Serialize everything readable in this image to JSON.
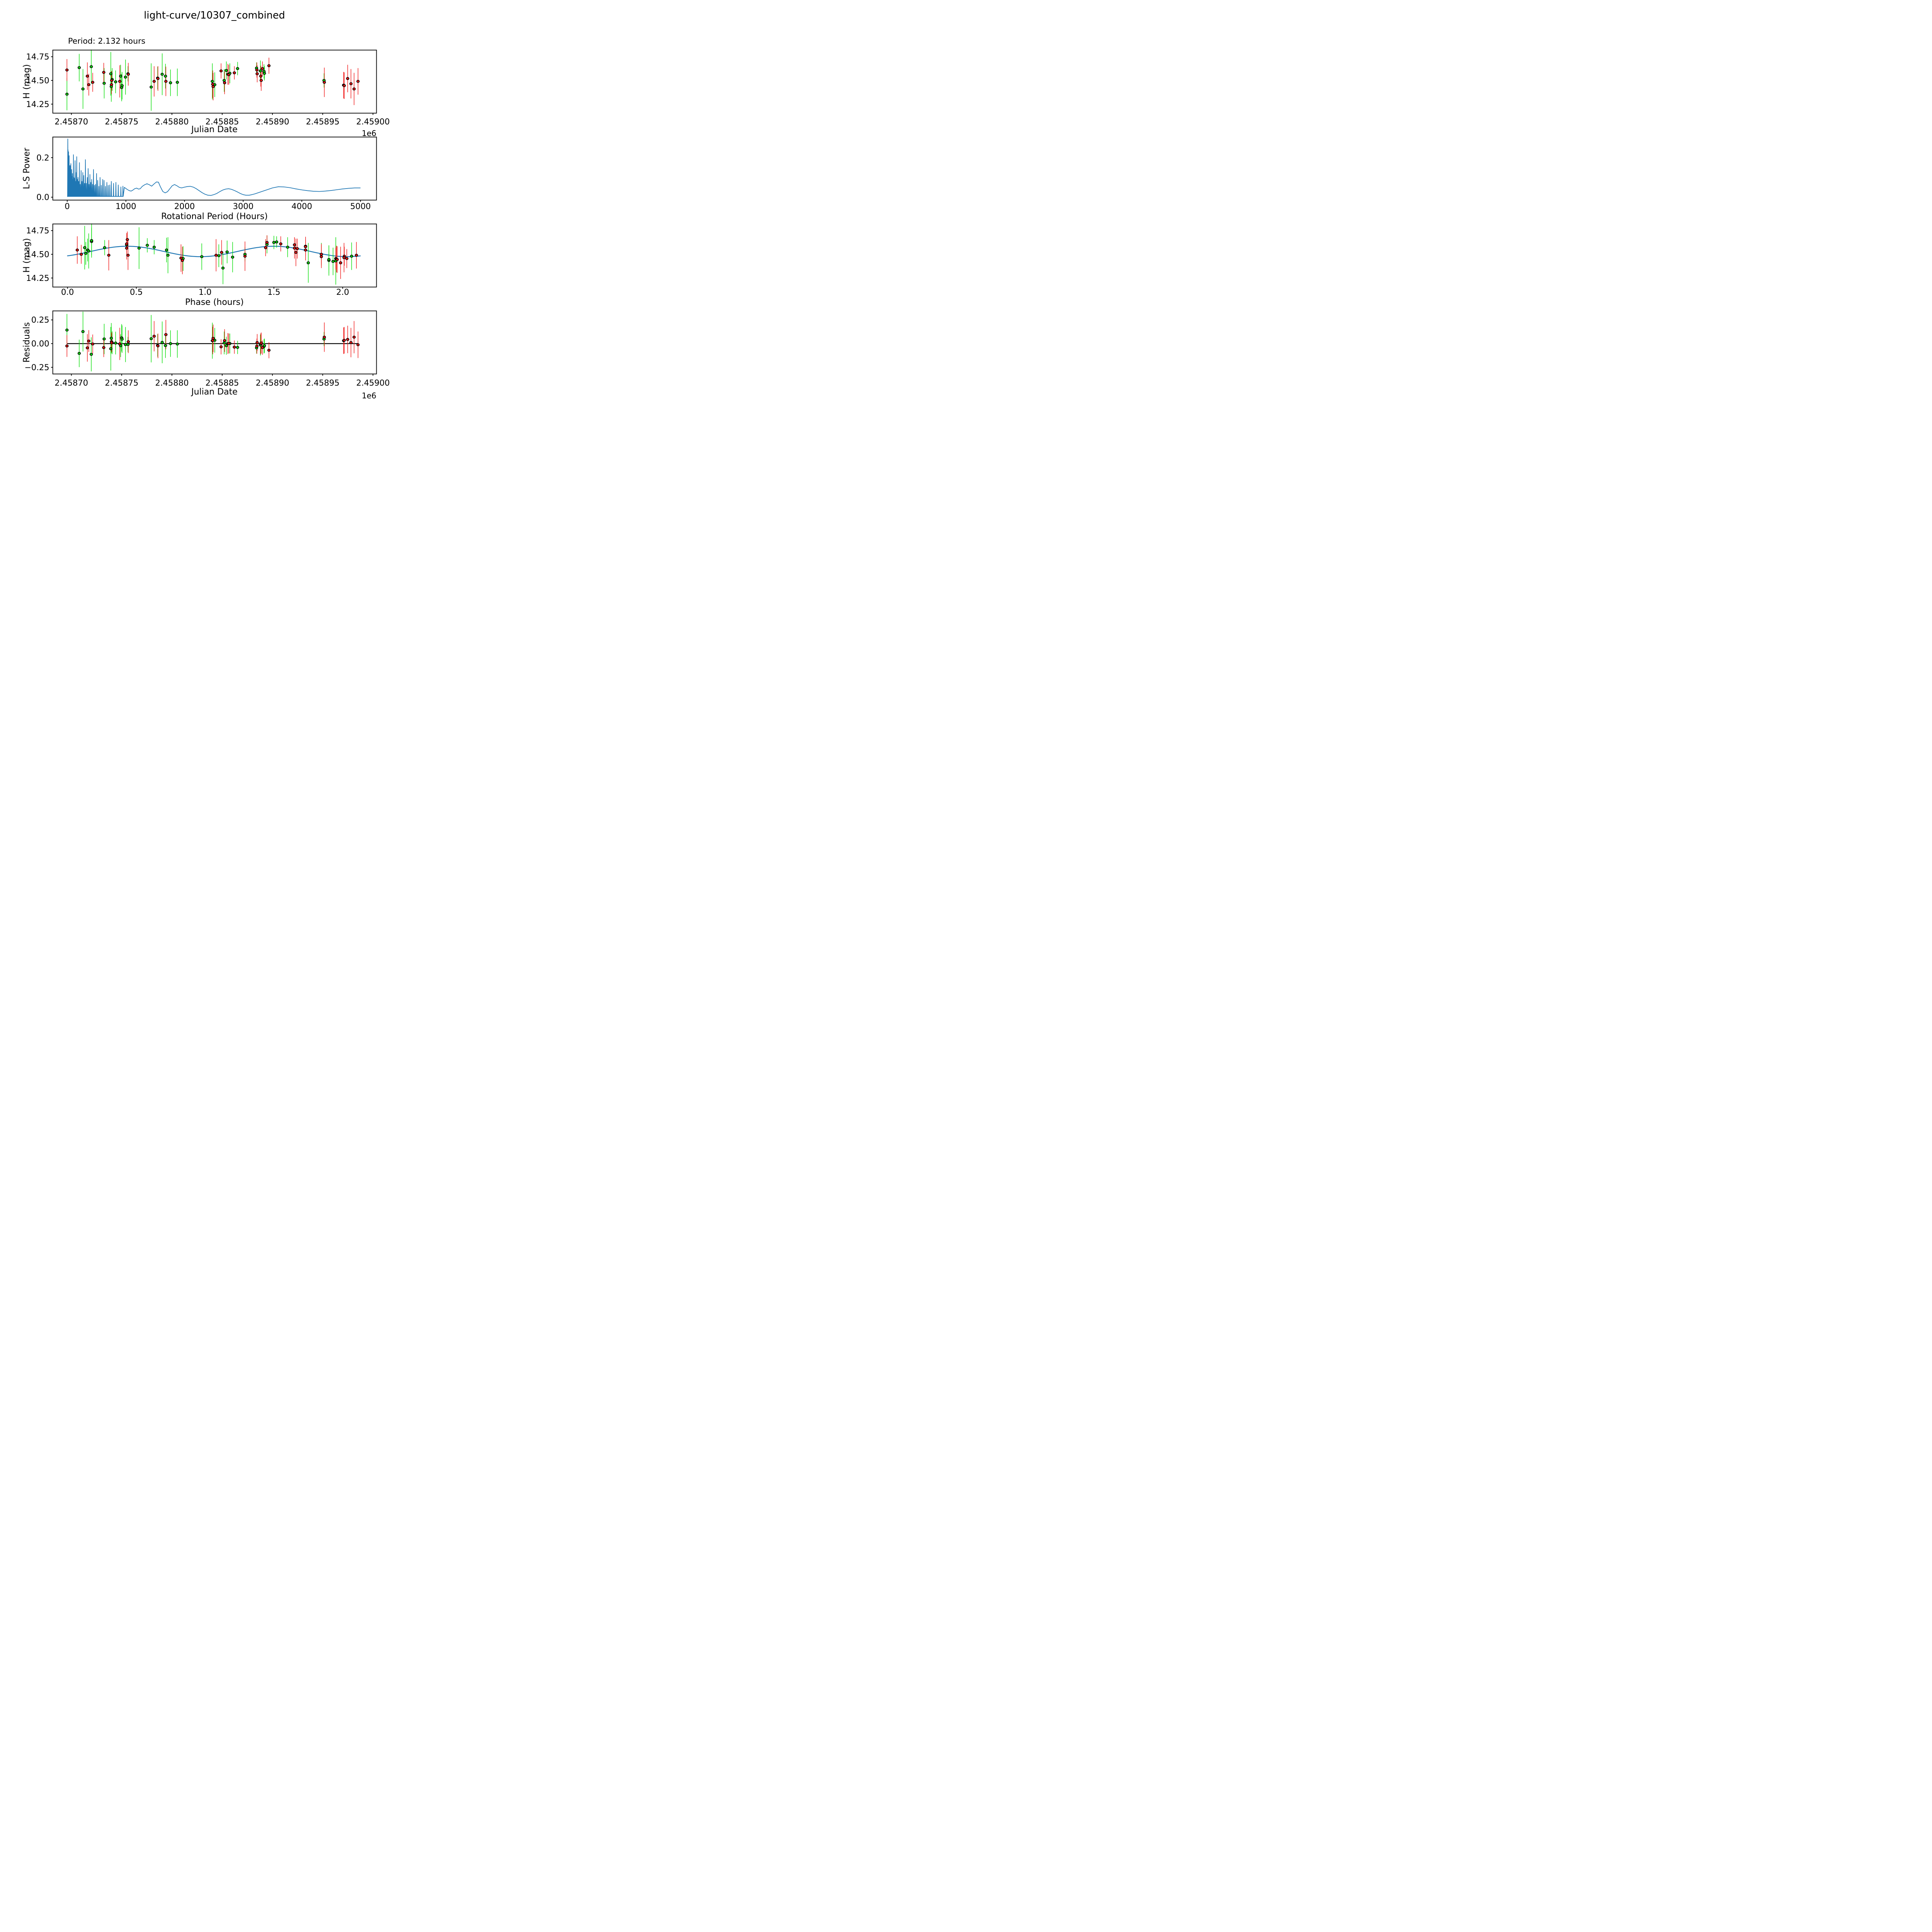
{
  "title": "light-curve/10307_combined",
  "annotation": "Period: 2.132 hours",
  "colors": {
    "red_series": "#f01111",
    "green_series": "#00dd00",
    "line_blue": "#1f77b4",
    "axis_black": "#000000",
    "marker_edge": "#000000"
  },
  "chart_data": {
    "panels": [
      {
        "id": "jd-lightcurve",
        "type": "scatter",
        "xlabel": "Julian Date",
        "ylabel": "H (mag)",
        "offset_label": "1e6",
        "xlim": [
          2458681.5,
          2459003.5
        ],
        "ylim": [
          14.155,
          14.82
        ],
        "xticks": {
          "values": [
            2458700,
            2458750,
            2458800,
            2458850,
            2458900,
            2458950,
            2459000
          ],
          "labels": [
            "2.45870",
            "2.45875",
            "2.45880",
            "2.45885",
            "2.45890",
            "2.45895",
            "2.45900"
          ]
        },
        "yticks": {
          "values": [
            14.25,
            14.5,
            14.75
          ],
          "labels": [
            "14.25",
            "14.50",
            "14.75"
          ]
        }
      },
      {
        "id": "periodogram",
        "type": "line",
        "xlabel": "Rotational Period (Hours)",
        "ylabel": "L-S Power",
        "xlim": [
          -246,
          5273
        ],
        "ylim": [
          -0.0145,
          0.3045
        ],
        "xticks": {
          "values": [
            0,
            1000,
            2000,
            3000,
            4000,
            5000
          ],
          "labels": [
            "0",
            "1000",
            "2000",
            "3000",
            "4000",
            "5000"
          ]
        },
        "yticks": {
          "values": [
            0.0,
            0.2
          ],
          "labels": [
            "0.0",
            "0.2"
          ]
        }
      },
      {
        "id": "phased-lightcurve",
        "type": "scatter+line",
        "xlabel": "Phase (hours)",
        "ylabel": "H (mag)",
        "xlim": [
          -0.107,
          2.246
        ],
        "ylim": [
          14.155,
          14.82
        ],
        "xticks": {
          "values": [
            0.0,
            0.5,
            1.0,
            1.5,
            2.0
          ],
          "labels": [
            "0.0",
            "0.5",
            "1.0",
            "1.5",
            "2.0"
          ]
        },
        "yticks": {
          "values": [
            14.25,
            14.5,
            14.75
          ],
          "labels": [
            "14.25",
            "14.50",
            "14.75"
          ]
        }
      },
      {
        "id": "residuals",
        "type": "scatter",
        "xlabel": "Julian Date",
        "ylabel": "Residuals",
        "offset_label": "1e6",
        "xlim": [
          2458681.5,
          2459003.5
        ],
        "ylim": [
          -0.32,
          0.345
        ],
        "xticks": {
          "values": [
            2458700,
            2458750,
            2458800,
            2458850,
            2458900,
            2458950,
            2459000
          ],
          "labels": [
            "2.45870",
            "2.45875",
            "2.45880",
            "2.45885",
            "2.45890",
            "2.45895",
            "2.45900"
          ]
        },
        "yticks": {
          "values": [
            -0.25,
            0.0,
            0.25
          ],
          "labels": [
            "−0.25",
            "0.00",
            "0.25"
          ]
        }
      }
    ],
    "observations_columns": [
      "jd",
      "H_mag",
      "err",
      "color",
      "phase_hours",
      "residual"
    ],
    "observations": [
      [
        2458695.6,
        14.61,
        0.115,
        "r",
        0.43,
        -0.025
      ],
      [
        2458695.6,
        14.355,
        0.17,
        "g",
        1.13,
        0.143
      ],
      [
        2458707.8,
        14.635,
        0.145,
        "g",
        0.175,
        -0.103
      ],
      [
        2458711.5,
        14.41,
        0.21,
        "g",
        1.75,
        0.127
      ],
      [
        2458715.9,
        14.545,
        0.145,
        "r",
        0.071,
        -0.045
      ],
      [
        2458717.3,
        14.455,
        0.115,
        "r",
        1.95,
        0.027
      ],
      [
        2458719.8,
        14.645,
        0.18,
        "g",
        0.175,
        -0.113
      ],
      [
        2458721.2,
        14.48,
        0.1,
        "r",
        2.012,
        -0.004
      ],
      [
        2458732.2,
        14.585,
        0.1,
        "r",
        1.73,
        -0.042
      ],
      [
        2458732.6,
        14.47,
        0.16,
        "g",
        1.2,
        0.049
      ],
      [
        2458739.2,
        14.57,
        0.23,
        "g",
        0.125,
        -0.054
      ],
      [
        2458739.7,
        14.435,
        0.16,
        "g",
        1.9,
        0.057
      ],
      [
        2458739.9,
        14.455,
        0.1,
        "r",
        2.03,
        0.02
      ],
      [
        2458740.1,
        14.5,
        0.1,
        "r",
        0.1,
        0.008
      ],
      [
        2458740.6,
        14.51,
        0.12,
        "g",
        0.133,
        0.009
      ],
      [
        2458744.0,
        14.485,
        0.12,
        "g",
        1.1,
        0.006
      ],
      [
        2458748.1,
        14.49,
        0.17,
        "r",
        1.08,
        -0.003
      ],
      [
        2458749.0,
        14.545,
        0.12,
        "g",
        0.146,
        -0.022
      ],
      [
        2458750.0,
        14.425,
        0.145,
        "g",
        1.93,
        0.061
      ],
      [
        2458750.4,
        14.445,
        0.145,
        "g",
        1.9,
        0.047
      ],
      [
        2458753.8,
        14.535,
        0.185,
        "g",
        0.154,
        -0.01
      ],
      [
        2458756.3,
        14.57,
        0.08,
        "g",
        0.27,
        -0.009
      ],
      [
        2458756.6,
        14.565,
        0.12,
        "r",
        0.43,
        0.02
      ],
      [
        2458779.4,
        14.43,
        0.25,
        "g",
        1.95,
        0.052
      ],
      [
        2458782.3,
        14.49,
        0.16,
        "r",
        0.3,
        0.078
      ],
      [
        2458785.8,
        14.525,
        0.12,
        "g",
        1.16,
        -0.019
      ],
      [
        2458786.1,
        14.52,
        0.13,
        "r",
        1.12,
        -0.024
      ],
      [
        2458790.3,
        14.565,
        0.22,
        "g",
        0.52,
        0.013
      ],
      [
        2458793.6,
        14.545,
        0.13,
        "g",
        0.72,
        -0.021
      ],
      [
        2458794.0,
        14.49,
        0.155,
        "r",
        0.44,
        0.095
      ],
      [
        2458798.6,
        14.475,
        0.14,
        "g",
        0.976,
        0.0
      ],
      [
        2458805.4,
        14.48,
        0.145,
        "g",
        2.065,
        -0.004
      ],
      [
        2458840.2,
        14.49,
        0.19,
        "g",
        0.73,
        0.031
      ],
      [
        2458840.6,
        14.46,
        0.145,
        "r",
        0.825,
        0.033
      ],
      [
        2458841.0,
        14.435,
        0.145,
        "r",
        0.835,
        0.056
      ],
      [
        2458842.6,
        14.455,
        0.13,
        "g",
        0.84,
        0.035
      ],
      [
        2458848.9,
        14.6,
        0.08,
        "r",
        1.65,
        -0.034
      ],
      [
        2458852.0,
        14.5,
        0.12,
        "g",
        1.845,
        0.007
      ],
      [
        2458852.4,
        14.475,
        0.12,
        "r",
        1.845,
        0.032
      ],
      [
        2458854.1,
        14.605,
        0.095,
        "g",
        1.45,
        -0.022
      ],
      [
        2458855.6,
        14.565,
        0.11,
        "r",
        1.65,
        0.001
      ],
      [
        2458856.6,
        14.56,
        0.105,
        "r",
        1.67,
        0.002
      ],
      [
        2458857.6,
        14.575,
        0.105,
        "g",
        1.6,
        0.001
      ],
      [
        2458862.1,
        14.58,
        0.07,
        "r",
        1.73,
        -0.037
      ],
      [
        2458865.3,
        14.625,
        0.07,
        "g",
        1.5,
        -0.04
      ],
      [
        2458884.2,
        14.63,
        0.06,
        "g",
        1.52,
        -0.045
      ],
      [
        2458884.5,
        14.61,
        0.08,
        "r",
        1.55,
        -0.027
      ],
      [
        2458884.8,
        14.57,
        0.09,
        "r",
        1.44,
        0.011
      ],
      [
        2458888.0,
        14.6,
        0.11,
        "g",
        0.43,
        -0.015
      ],
      [
        2458888.4,
        14.545,
        0.11,
        "r",
        1.73,
        -0.002
      ],
      [
        2458888.8,
        14.5,
        0.11,
        "r",
        1.845,
        0.007
      ],
      [
        2458890.1,
        14.625,
        0.075,
        "r",
        1.45,
        -0.042
      ],
      [
        2458891.6,
        14.595,
        0.075,
        "g",
        0.58,
        -0.029
      ],
      [
        2458892.0,
        14.575,
        0.075,
        "g",
        0.63,
        -0.022
      ],
      [
        2458896.5,
        14.655,
        0.085,
        "r",
        0.435,
        -0.07
      ],
      [
        2458951.3,
        14.5,
        0.075,
        "g",
        1.29,
        0.048
      ],
      [
        2458951.6,
        14.48,
        0.155,
        "r",
        1.29,
        0.068
      ],
      [
        2458970.8,
        14.45,
        0.14,
        "r",
        1.955,
        0.031
      ],
      [
        2458971.4,
        14.445,
        0.14,
        "r",
        1.96,
        0.035
      ],
      [
        2458974.8,
        14.52,
        0.145,
        "r",
        1.66,
        0.044
      ],
      [
        2458978.1,
        14.465,
        0.155,
        "r",
        2.01,
        0.011
      ],
      [
        2458981.2,
        14.41,
        0.17,
        "r",
        1.985,
        0.068
      ],
      [
        2458985.1,
        14.49,
        0.14,
        "r",
        2.1,
        -0.012
      ]
    ],
    "periodogram": {
      "spikes": [
        [
          10,
          0.295
        ],
        [
          14,
          0.24
        ],
        [
          18,
          0.205
        ],
        [
          23,
          0.23
        ],
        [
          28,
          0.165
        ],
        [
          33,
          0.21
        ],
        [
          38,
          0.16
        ],
        [
          44,
          0.145
        ],
        [
          50,
          0.16
        ],
        [
          56,
          0.135
        ],
        [
          62,
          0.17
        ],
        [
          68,
          0.115
        ],
        [
          75,
          0.14
        ],
        [
          82,
          0.105
        ],
        [
          90,
          0.12
        ],
        [
          98,
          0.09
        ],
        [
          106,
          0.215
        ],
        [
          115,
          0.1
        ],
        [
          124,
          0.095
        ],
        [
          134,
          0.185
        ],
        [
          145,
          0.08
        ],
        [
          154,
          0.125
        ],
        [
          162,
          0.205
        ],
        [
          172,
          0.09
        ],
        [
          183,
          0.1
        ],
        [
          195,
          0.08
        ],
        [
          208,
          0.175
        ],
        [
          222,
          0.065
        ],
        [
          237,
          0.135
        ],
        [
          252,
          0.08
        ],
        [
          266,
          0.125
        ],
        [
          282,
          0.11
        ],
        [
          296,
          0.07
        ],
        [
          310,
          0.19
        ],
        [
          326,
          0.07
        ],
        [
          342,
          0.1
        ],
        [
          357,
          0.145
        ],
        [
          372,
          0.065
        ],
        [
          387,
          0.115
        ],
        [
          402,
          0.075
        ],
        [
          417,
          0.09
        ],
        [
          433,
          0.065
        ],
        [
          448,
          0.14
        ],
        [
          465,
          0.06
        ],
        [
          482,
          0.065
        ],
        [
          500,
          0.12
        ],
        [
          520,
          0.085
        ],
        [
          540,
          0.055
        ],
        [
          560,
          0.1
        ],
        [
          582,
          0.06
        ],
        [
          605,
          0.09
        ],
        [
          628,
          0.085
        ],
        [
          652,
          0.055
        ],
        [
          676,
          0.075
        ],
        [
          700,
          0.06
        ],
        [
          726,
          0.062
        ],
        [
          752,
          0.08
        ],
        [
          790,
          0.07
        ],
        [
          830,
          0.075
        ],
        [
          870,
          0.062
        ],
        [
          915,
          0.052
        ],
        [
          950,
          0.056
        ]
      ],
      "smooth": [
        [
          975,
          0.05
        ],
        [
          1000,
          0.044
        ],
        [
          1030,
          0.038
        ],
        [
          1060,
          0.033
        ],
        [
          1090,
          0.031
        ],
        [
          1120,
          0.036
        ],
        [
          1150,
          0.043
        ],
        [
          1185,
          0.046
        ],
        [
          1215,
          0.041
        ],
        [
          1245,
          0.043
        ],
        [
          1280,
          0.055
        ],
        [
          1320,
          0.063
        ],
        [
          1360,
          0.068
        ],
        [
          1400,
          0.063
        ],
        [
          1440,
          0.056
        ],
        [
          1480,
          0.067
        ],
        [
          1520,
          0.077
        ],
        [
          1555,
          0.076
        ],
        [
          1590,
          0.052
        ],
        [
          1630,
          0.029
        ],
        [
          1670,
          0.022
        ],
        [
          1710,
          0.028
        ],
        [
          1750,
          0.043
        ],
        [
          1790,
          0.058
        ],
        [
          1830,
          0.064
        ],
        [
          1870,
          0.058
        ],
        [
          1910,
          0.05
        ],
        [
          1950,
          0.047
        ],
        [
          2000,
          0.051
        ],
        [
          2050,
          0.054
        ],
        [
          2100,
          0.055
        ],
        [
          2150,
          0.051
        ],
        [
          2200,
          0.043
        ],
        [
          2250,
          0.033
        ],
        [
          2300,
          0.023
        ],
        [
          2350,
          0.015
        ],
        [
          2400,
          0.01
        ],
        [
          2450,
          0.009
        ],
        [
          2500,
          0.013
        ],
        [
          2550,
          0.019
        ],
        [
          2600,
          0.028
        ],
        [
          2650,
          0.036
        ],
        [
          2700,
          0.041
        ],
        [
          2750,
          0.043
        ],
        [
          2800,
          0.04
        ],
        [
          2850,
          0.034
        ],
        [
          2900,
          0.027
        ],
        [
          2950,
          0.019
        ],
        [
          3000,
          0.013
        ],
        [
          3050,
          0.01
        ],
        [
          3100,
          0.01
        ],
        [
          3150,
          0.013
        ],
        [
          3200,
          0.017
        ],
        [
          3300,
          0.027
        ],
        [
          3400,
          0.037
        ],
        [
          3500,
          0.047
        ],
        [
          3600,
          0.053
        ],
        [
          3700,
          0.052
        ],
        [
          3800,
          0.048
        ],
        [
          3900,
          0.042
        ],
        [
          4000,
          0.037
        ],
        [
          4100,
          0.033
        ],
        [
          4200,
          0.03
        ],
        [
          4300,
          0.029
        ],
        [
          4400,
          0.031
        ],
        [
          4500,
          0.034
        ],
        [
          4600,
          0.038
        ],
        [
          4700,
          0.042
        ],
        [
          4800,
          0.045
        ],
        [
          4900,
          0.047
        ],
        [
          5000,
          0.047
        ]
      ]
    },
    "fit": {
      "mean_mag": 14.53,
      "amplitude_mag": 0.055,
      "fit_period_hours": 1.066,
      "phase_of_max_hours": 0.435,
      "phase_range_hours": [
        0.0,
        2.132
      ]
    },
    "residual_zero_line": {
      "x_start": 2458695.6,
      "x_end": 2458985.1,
      "y": 0.0
    },
    "period_label_hours": 2.132
  }
}
